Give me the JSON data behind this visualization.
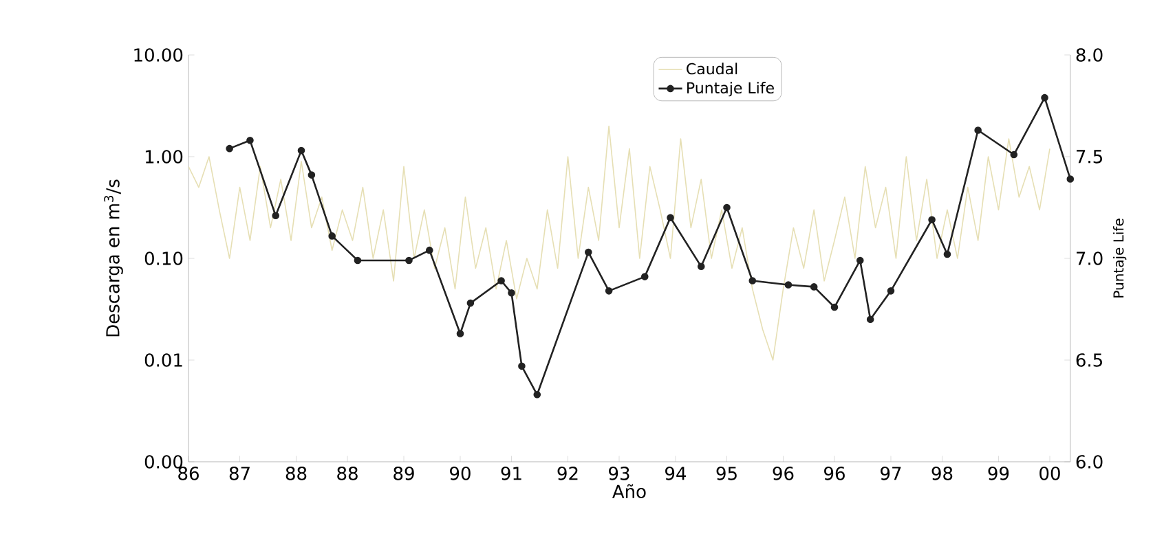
{
  "chart_data": {
    "type": "line",
    "xlabel": "Año",
    "ylabel": "Descarga en m$^{3}$/s",
    "y2label": "Puntaje Life",
    "xlim": [
      "1986-05",
      "2000-09"
    ],
    "xticks": [
      {
        "value": "1986-05",
        "label": "86"
      },
      {
        "value": "1987-03",
        "label": "87"
      },
      {
        "value": "1988-02",
        "label": "88"
      },
      {
        "value": "1988-12",
        "label": "88"
      },
      {
        "value": "1989-11",
        "label": "89"
      },
      {
        "value": "1990-10",
        "label": "90"
      },
      {
        "value": "1991-08",
        "label": "91"
      },
      {
        "value": "1992-07",
        "label": "92"
      },
      {
        "value": "1993-05",
        "label": "93"
      },
      {
        "value": "1994-04",
        "label": "94"
      },
      {
        "value": "1995-02",
        "label": "95"
      },
      {
        "value": "1996-01",
        "label": "96"
      },
      {
        "value": "1996-11",
        "label": "96"
      },
      {
        "value": "1997-10",
        "label": "97"
      },
      {
        "value": "1998-08",
        "label": "98"
      },
      {
        "value": "1999-07",
        "label": "99"
      },
      {
        "value": "2000-05",
        "label": "00"
      }
    ],
    "ylim": [
      0.001,
      10
    ],
    "log": "y",
    "yticks": [
      {
        "value": 0.001,
        "label": "0.00"
      },
      {
        "value": 0.01,
        "label": "0.01"
      },
      {
        "value": 0.1,
        "label": "0.10"
      },
      {
        "value": 1,
        "label": "1.00"
      },
      {
        "value": 10,
        "label": "10.00"
      }
    ],
    "y2lim": [
      6,
      8
    ],
    "y2ticks": [
      {
        "value": 6,
        "label": "6.0"
      },
      {
        "value": 6.5,
        "label": "6.5"
      },
      {
        "value": 7,
        "label": "7.0"
      },
      {
        "value": 7.5,
        "label": "7.5"
      },
      {
        "value": 8,
        "label": "8.0"
      }
    ],
    "legend": "top",
    "series": [
      {
        "name": "Caudal",
        "color": "#e6dfb4",
        "marker": "none",
        "x": [
          "1986-05",
          "1986-07",
          "1986-09",
          "1986-11",
          "1987-01",
          "1987-03",
          "1987-05",
          "1987-07",
          "1987-09",
          "1987-11",
          "1988-01",
          "1988-03",
          "1988-05",
          "1988-07",
          "1988-09",
          "1988-11",
          "1989-01",
          "1989-03",
          "1989-05",
          "1989-07",
          "1989-09",
          "1989-11",
          "1990-01",
          "1990-03",
          "1990-05",
          "1990-07",
          "1990-09",
          "1990-11",
          "1991-01",
          "1991-03",
          "1991-05",
          "1991-07",
          "1991-09",
          "1991-11",
          "1992-01",
          "1992-03",
          "1992-05",
          "1992-07",
          "1992-09",
          "1992-11",
          "1993-01",
          "1993-03",
          "1993-05",
          "1993-07",
          "1993-09",
          "1993-11",
          "1994-01",
          "1994-03",
          "1994-05",
          "1994-07",
          "1994-09",
          "1994-11",
          "1995-01",
          "1995-03",
          "1995-05",
          "1995-07",
          "1995-09",
          "1995-11",
          "1996-01",
          "1996-03",
          "1996-05",
          "1996-07",
          "1996-09",
          "1996-11",
          "1997-01",
          "1997-03",
          "1997-05",
          "1997-07",
          "1997-09",
          "1997-11",
          "1998-01",
          "1998-03",
          "1998-05",
          "1998-07",
          "1998-09",
          "1998-11",
          "1999-01",
          "1999-03",
          "1999-05",
          "1999-07",
          "1999-09",
          "1999-11",
          "2000-01",
          "2000-03",
          "2000-05"
        ],
        "values": [
          0.8,
          0.5,
          1.0,
          0.3,
          0.1,
          0.5,
          0.15,
          0.8,
          0.2,
          0.6,
          0.15,
          0.9,
          0.2,
          0.4,
          0.12,
          0.3,
          0.15,
          0.5,
          0.1,
          0.3,
          0.06,
          0.8,
          0.1,
          0.3,
          0.08,
          0.2,
          0.05,
          0.4,
          0.08,
          0.2,
          0.05,
          0.15,
          0.04,
          0.1,
          0.05,
          0.3,
          0.08,
          1.0,
          0.1,
          0.5,
          0.15,
          2.0,
          0.2,
          1.2,
          0.1,
          0.8,
          0.3,
          0.1,
          1.5,
          0.2,
          0.6,
          0.1,
          0.3,
          0.08,
          0.2,
          0.05,
          0.02,
          0.01,
          0.05,
          0.2,
          0.08,
          0.3,
          0.06,
          0.15,
          0.4,
          0.1,
          0.8,
          0.2,
          0.5,
          0.1,
          1.0,
          0.15,
          0.6,
          0.1,
          0.3,
          0.1,
          0.5,
          0.15,
          1.0,
          0.3,
          1.5,
          0.4,
          0.8,
          0.3,
          1.2
        ]
      },
      {
        "name": "Puntaje Life",
        "axis": "y2",
        "color": "#222222",
        "marker": "circle",
        "x": [
          "1987-01",
          "1987-05",
          "1987-10",
          "1988-03",
          "1988-05",
          "1988-09",
          "1989-02",
          "1989-12",
          "1990-04",
          "1990-10",
          "1990-12",
          "1991-06",
          "1991-08",
          "1991-10",
          "1992-01",
          "1992-11",
          "1993-03",
          "1993-10",
          "1994-03",
          "1994-09",
          "1995-02",
          "1995-07",
          "1996-02",
          "1996-07",
          "1996-11",
          "1997-04",
          "1997-06",
          "1997-10",
          "1998-06",
          "1998-09",
          "1999-03",
          "1999-10",
          "2000-04",
          "2000-09"
        ],
        "values": [
          7.54,
          7.58,
          7.21,
          7.53,
          7.41,
          7.11,
          6.99,
          6.99,
          7.04,
          6.63,
          6.78,
          6.89,
          6.83,
          6.47,
          6.33,
          7.03,
          6.84,
          6.91,
          7.2,
          6.96,
          7.25,
          6.89,
          6.87,
          6.86,
          6.76,
          6.99,
          6.7,
          6.84,
          7.19,
          7.02,
          7.63,
          7.51,
          7.79,
          7.39
        ]
      }
    ]
  }
}
